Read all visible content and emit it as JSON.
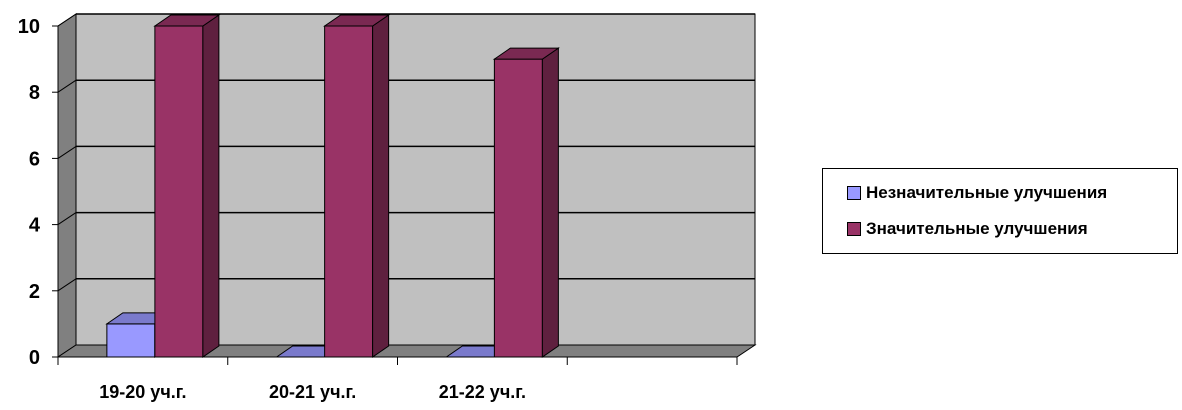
{
  "chart_data": {
    "type": "bar",
    "categories": [
      "19-20 уч.г.",
      "20-21 уч.г.",
      "21-22 уч.г.",
      ""
    ],
    "series": [
      {
        "name": "Незначительные улучшения",
        "values": [
          1,
          0,
          0,
          null
        ],
        "color": "#9999ff"
      },
      {
        "name": "Значительные улучшения",
        "values": [
          10,
          10,
          9,
          null
        ],
        "color": "#993366"
      }
    ],
    "yticks": [
      "0",
      "2",
      "4",
      "6",
      "8",
      "10"
    ],
    "ylim": [
      0,
      10
    ],
    "grid": true,
    "legend_position": "right",
    "three_d": true,
    "colors": {
      "wall": "#c0c0c0",
      "side_wall": "#808080",
      "floor": "#808080"
    }
  }
}
